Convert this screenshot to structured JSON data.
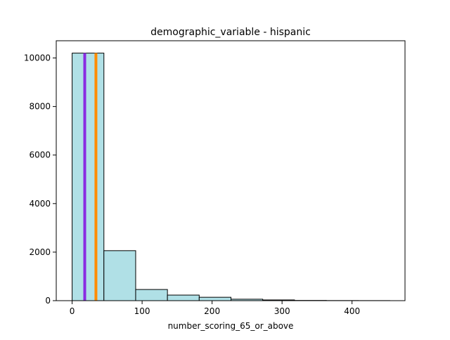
{
  "chart_data": {
    "type": "bar",
    "title": "demographic_variable - hispanic",
    "xlabel": "number_scoring_65_or_above",
    "ylabel": "",
    "xlim": [
      -22.7,
      475.7
    ],
    "ylim": [
      0,
      10710
    ],
    "x_ticks": [
      0,
      100,
      200,
      300,
      400
    ],
    "y_ticks": [
      0,
      2000,
      4000,
      6000,
      8000,
      10000
    ],
    "bin_edges": [
      0,
      45.4,
      90.8,
      136.2,
      181.6,
      227.0,
      272.4,
      317.8,
      363.2,
      408.6,
      454.0
    ],
    "counts": [
      10200,
      2060,
      460,
      230,
      140,
      60,
      30,
      10,
      5,
      3
    ],
    "bar_color": "#b0e0e6",
    "bar_edge_color": "#000000",
    "vertical_lines": [
      {
        "x": 18,
        "color": "#8a2be2"
      },
      {
        "x": 34,
        "color": "#ff8c00"
      }
    ],
    "grid": false
  }
}
